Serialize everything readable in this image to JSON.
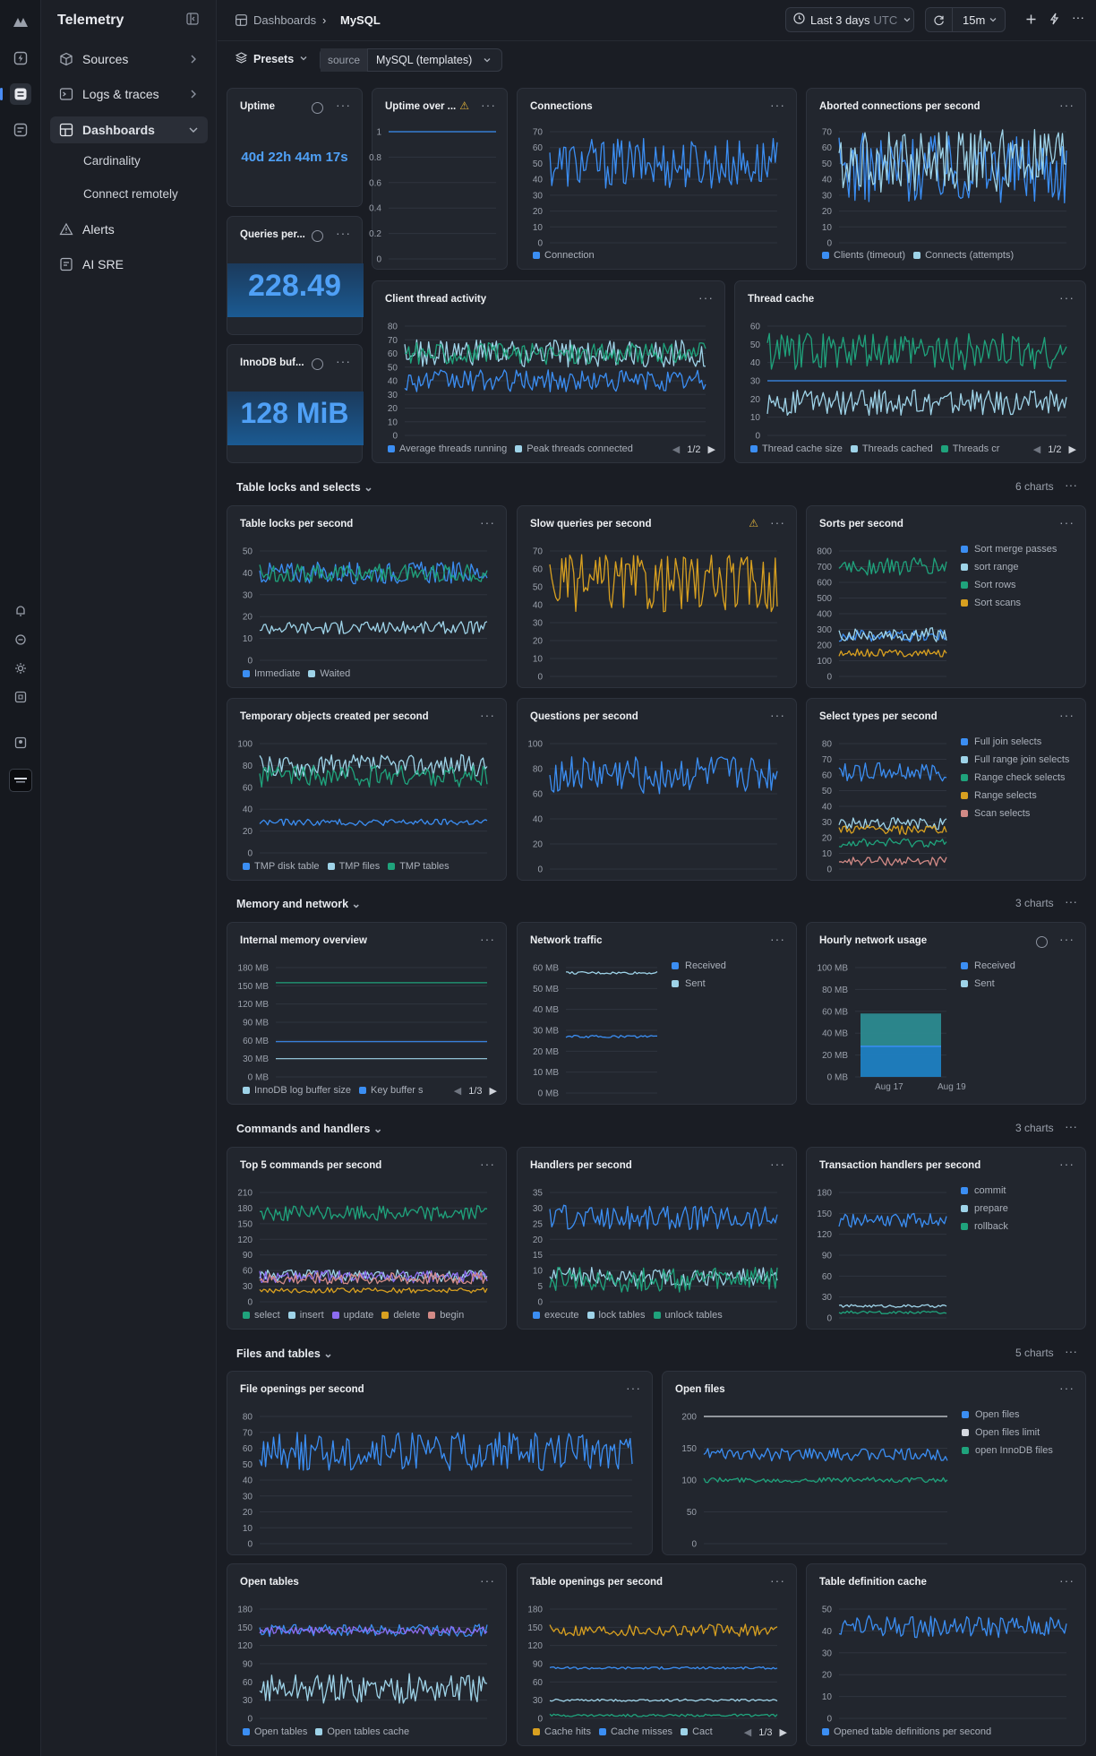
{
  "app": {
    "name": "Telemetry"
  },
  "nav": {
    "items": [
      {
        "key": "sources",
        "label": "Sources"
      },
      {
        "key": "logs",
        "label": "Logs & traces"
      },
      {
        "key": "dashboards",
        "label": "Dashboards"
      },
      {
        "key": "alerts",
        "label": "Alerts"
      },
      {
        "key": "aisre",
        "label": "AI SRE"
      }
    ],
    "sub": [
      "Cardinality",
      "Connect remotely"
    ]
  },
  "breadcrumb": {
    "root": "Dashboards",
    "current": "MySQL"
  },
  "toolbar": {
    "range": "Last 3 days",
    "tz": "UTC",
    "interval": "15m"
  },
  "presets": {
    "label": "Presets",
    "source_label": "source",
    "source_value": "MySQL (templates)"
  },
  "stats": {
    "uptime": {
      "title": "Uptime",
      "value": "40d 22h 44m 17s"
    },
    "queries": {
      "title": "Queries per...",
      "value": "228.49"
    },
    "innodb": {
      "title": "InnoDB buf...",
      "value": "128 MiB"
    }
  },
  "sections": [
    {
      "key": "locks",
      "title": "Table locks and selects",
      "count": "6 charts"
    },
    {
      "key": "memory",
      "title": "Memory and network",
      "count": "3 charts"
    },
    {
      "key": "commands",
      "title": "Commands and handlers",
      "count": "3 charts"
    },
    {
      "key": "files",
      "title": "Files and tables",
      "count": "5 charts"
    }
  ],
  "colors": {
    "blue": "#3b8ef3",
    "teal": "#1fa37c",
    "lightblue": "#9ed3e8",
    "yellow": "#d8a020",
    "pink": "#d28a86",
    "purple": "#8c6cf0"
  },
  "chart_data": [
    {
      "id": "uptime_over",
      "title": "Uptime over ...",
      "type": "line",
      "yticks": [
        "1",
        "0.8",
        "0.6",
        "0.4",
        "0.2",
        "0"
      ],
      "ylim": [
        0,
        1
      ],
      "series": [
        {
          "color": "#3b8ef3",
          "pattern": "flat",
          "base": 1,
          "amp": 0
        }
      ],
      "legend": []
    },
    {
      "id": "connections",
      "title": "Connections",
      "type": "line",
      "yticks": [
        "70",
        "60",
        "50",
        "40",
        "30",
        "20",
        "10",
        "0"
      ],
      "ylim": [
        0,
        70
      ],
      "series": [
        {
          "name": "Connection",
          "color": "#3b8ef3",
          "pattern": "noise",
          "base": 50,
          "amp": 16
        }
      ],
      "legend": [
        "Connection"
      ]
    },
    {
      "id": "aborted",
      "title": "Aborted connections per second",
      "type": "line",
      "yticks": [
        "70",
        "60",
        "50",
        "40",
        "30",
        "20",
        "10",
        "0"
      ],
      "ylim": [
        0,
        70
      ],
      "series": [
        {
          "name": "Clients (timeout)",
          "color": "#3b8ef3",
          "pattern": "noise",
          "base": 47,
          "amp": 22
        },
        {
          "name": "Connects (attempts)",
          "color": "#9ed3e8",
          "pattern": "noise",
          "base": 52,
          "amp": 20
        }
      ],
      "legend": [
        "Clients (timeout)",
        "Connects (attempts)"
      ]
    },
    {
      "id": "client_thread",
      "title": "Client thread activity",
      "type": "line",
      "yticks": [
        "80",
        "70",
        "60",
        "50",
        "40",
        "30",
        "20",
        "10",
        "0"
      ],
      "ylim": [
        0,
        80
      ],
      "series": [
        {
          "name": "Average threads running",
          "color": "#3b8ef3",
          "pattern": "noise",
          "base": 40,
          "amp": 8
        },
        {
          "name": "Peak threads connected",
          "color": "#9ed3e8",
          "pattern": "noise",
          "base": 60,
          "amp": 10
        },
        {
          "name": "",
          "color": "#1fa37c",
          "pattern": "noise",
          "base": 60,
          "amp": 8
        }
      ],
      "legend": [
        "Average threads running",
        "Peak threads connected"
      ],
      "page": "1/2"
    },
    {
      "id": "thread_cache",
      "title": "Thread cache",
      "type": "line",
      "yticks": [
        "60",
        "50",
        "40",
        "30",
        "20",
        "10",
        "0"
      ],
      "ylim": [
        0,
        60
      ],
      "series": [
        {
          "name": "Thread cache size",
          "color": "#3b8ef3",
          "pattern": "flat",
          "base": 30,
          "amp": 0
        },
        {
          "name": "Threads cached",
          "color": "#9ed3e8",
          "pattern": "noise",
          "base": 18,
          "amp": 7
        },
        {
          "name": "Threads cr",
          "color": "#1fa37c",
          "pattern": "noise",
          "base": 46,
          "amp": 10
        }
      ],
      "legend": [
        "Thread cache size",
        "Threads cached",
        "Threads cr"
      ],
      "page": "1/2"
    },
    {
      "id": "table_locks",
      "title": "Table locks per second",
      "type": "line",
      "yticks": [
        "50",
        "40",
        "30",
        "20",
        "10",
        "0"
      ],
      "ylim": [
        0,
        50
      ],
      "series": [
        {
          "name": "Immediate",
          "color": "#3b8ef3",
          "pattern": "noise",
          "base": 40,
          "amp": 5
        },
        {
          "name": "Waited",
          "color": "#9ed3e8",
          "pattern": "noise",
          "base": 15,
          "amp": 3
        },
        {
          "name": "",
          "color": "#1fa37c",
          "pattern": "noise",
          "base": 40,
          "amp": 4
        }
      ],
      "legend": [
        "Immediate",
        "Waited"
      ]
    },
    {
      "id": "slow_queries",
      "title": "Slow queries per second",
      "type": "line",
      "yticks": [
        "70",
        "60",
        "50",
        "40",
        "30",
        "20",
        "10",
        "0"
      ],
      "ylim": [
        0,
        70
      ],
      "series": [
        {
          "color": "#d8a020",
          "pattern": "noise",
          "base": 52,
          "amp": 16
        }
      ],
      "legend": []
    },
    {
      "id": "sorts",
      "title": "Sorts per second",
      "type": "line",
      "yticks": [
        "800",
        "700",
        "600",
        "500",
        "400",
        "300",
        "200",
        "100",
        "0"
      ],
      "ylim": [
        0,
        800
      ],
      "series": [
        {
          "name": "Sort merge passes",
          "color": "#3b8ef3",
          "pattern": "noise",
          "base": 260,
          "amp": 40
        },
        {
          "name": "sort range",
          "color": "#9ed3e8",
          "pattern": "noise",
          "base": 270,
          "amp": 50
        },
        {
          "name": "Sort rows",
          "color": "#1fa37c",
          "pattern": "noise",
          "base": 700,
          "amp": 60
        },
        {
          "name": "Sort scans",
          "color": "#d8a020",
          "pattern": "noise",
          "base": 150,
          "amp": 25
        }
      ],
      "legend": [
        "Sort merge passes",
        "sort range",
        "Sort rows",
        "Sort scans"
      ]
    },
    {
      "id": "tmp_objects",
      "title": "Temporary objects created per second",
      "type": "line",
      "yticks": [
        "100",
        "80",
        "60",
        "40",
        "20",
        "0"
      ],
      "ylim": [
        0,
        100
      ],
      "series": [
        {
          "name": "TMP disk table",
          "color": "#3b8ef3",
          "pattern": "noise",
          "base": 28,
          "amp": 3
        },
        {
          "name": "TMP files",
          "color": "#9ed3e8",
          "pattern": "noise",
          "base": 80,
          "amp": 10
        },
        {
          "name": "TMP tables",
          "color": "#1fa37c",
          "pattern": "noise",
          "base": 70,
          "amp": 10
        }
      ],
      "legend": [
        "TMP disk table",
        "TMP files",
        "TMP tables"
      ]
    },
    {
      "id": "questions",
      "title": "Questions per second",
      "type": "line",
      "yticks": [
        "100",
        "80",
        "60",
        "40",
        "20",
        "0"
      ],
      "ylim": [
        0,
        100
      ],
      "series": [
        {
          "color": "#3b8ef3",
          "pattern": "noise",
          "base": 75,
          "amp": 15
        }
      ],
      "legend": []
    },
    {
      "id": "select_types",
      "title": "Select types per second",
      "type": "line",
      "yticks": [
        "80",
        "70",
        "60",
        "50",
        "40",
        "30",
        "20",
        "10",
        "0"
      ],
      "ylim": [
        0,
        80
      ],
      "series": [
        {
          "name": "Full join selects",
          "color": "#3b8ef3",
          "pattern": "noise",
          "base": 62,
          "amp": 6
        },
        {
          "name": "Full range join selects",
          "color": "#9ed3e8",
          "pattern": "noise",
          "base": 29,
          "amp": 4
        },
        {
          "name": "Range check selects",
          "color": "#1fa37c",
          "pattern": "noise",
          "base": 17,
          "amp": 3
        },
        {
          "name": "Range selects",
          "color": "#d8a020",
          "pattern": "noise",
          "base": 25,
          "amp": 3
        },
        {
          "name": "Scan selects",
          "color": "#d28a86",
          "pattern": "noise",
          "base": 5,
          "amp": 3
        }
      ],
      "legend": [
        "Full join selects",
        "Full range join selects",
        "Range check selects",
        "Range selects",
        "Scan selects"
      ]
    },
    {
      "id": "internal_memory",
      "title": "Internal memory overview",
      "type": "line",
      "yticks": [
        "180 MB",
        "150 MB",
        "120 MB",
        "90 MB",
        "60 MB",
        "30 MB",
        "0 MB"
      ],
      "ylim": [
        0,
        180
      ],
      "series": [
        {
          "name": "InnoDB log buffer size",
          "color": "#9ed3e8",
          "pattern": "flat",
          "base": 30,
          "amp": 0
        },
        {
          "name": "Key buffer",
          "color": "#3b8ef3",
          "pattern": "flat",
          "base": 58,
          "amp": 0
        },
        {
          "name": "",
          "color": "#1fa37c",
          "pattern": "flat",
          "base": 155,
          "amp": 0
        }
      ],
      "legend": [
        "InnoDB log buffer size",
        "Key buffer s"
      ],
      "page": "1/3"
    },
    {
      "id": "network_traffic",
      "title": "Network traffic",
      "type": "line",
      "yticks": [
        "60 MB",
        "50 MB",
        "40 MB",
        "30 MB",
        "20 MB",
        "10 MB",
        "0 MB"
      ],
      "ylim": [
        0,
        60
      ],
      "series": [
        {
          "name": "Received",
          "color": "#3b8ef3",
          "pattern": "noise",
          "base": 27,
          "amp": 0.6
        },
        {
          "name": "Sent",
          "color": "#9ed3e8",
          "pattern": "noise",
          "base": 57.5,
          "amp": 0.6
        }
      ],
      "legend": [
        "Received",
        "Sent"
      ]
    },
    {
      "id": "hourly_network",
      "title": "Hourly network usage",
      "type": "bar",
      "yticks": [
        "100 MB",
        "80 MB",
        "60 MB",
        "40 MB",
        "20 MB",
        "0 MB"
      ],
      "ylim": [
        0,
        100
      ],
      "x": [
        "Aug 17",
        "Aug 19"
      ],
      "series": [
        {
          "name": "Received",
          "color": "#3b8ef3",
          "value": 28
        },
        {
          "name": "Sent",
          "color": "#9ed3e8",
          "value": 58
        }
      ],
      "legend": [
        "Received",
        "Sent"
      ]
    },
    {
      "id": "top_commands",
      "title": "Top 5 commands per second",
      "type": "line",
      "yticks": [
        "210",
        "180",
        "150",
        "120",
        "90",
        "60",
        "30",
        "0"
      ],
      "ylim": [
        0,
        210
      ],
      "series": [
        {
          "name": "select",
          "color": "#1fa37c",
          "pattern": "noise",
          "base": 170,
          "amp": 15
        },
        {
          "name": "insert",
          "color": "#9ed3e8",
          "pattern": "noise",
          "base": 50,
          "amp": 12
        },
        {
          "name": "update",
          "color": "#8c6cf0",
          "pattern": "noise",
          "base": 48,
          "amp": 12
        },
        {
          "name": "delete",
          "color": "#d8a020",
          "pattern": "noise",
          "base": 22,
          "amp": 5
        },
        {
          "name": "begin",
          "color": "#d28a86",
          "pattern": "noise",
          "base": 45,
          "amp": 12
        }
      ],
      "legend": [
        "select",
        "insert",
        "update",
        "delete",
        "begin"
      ]
    },
    {
      "id": "handlers",
      "title": "Handlers per second",
      "type": "line",
      "yticks": [
        "35",
        "30",
        "25",
        "20",
        "15",
        "10",
        "5",
        "0"
      ],
      "ylim": [
        0,
        35
      ],
      "series": [
        {
          "name": "execute",
          "color": "#3b8ef3",
          "pattern": "noise",
          "base": 27,
          "amp": 4
        },
        {
          "name": "lock tables",
          "color": "#9ed3e8",
          "pattern": "noise",
          "base": 8,
          "amp": 3
        },
        {
          "name": "unlock tables",
          "color": "#1fa37c",
          "pattern": "noise",
          "base": 7,
          "amp": 4
        }
      ],
      "legend": [
        "execute",
        "lock tables",
        "unlock tables"
      ]
    },
    {
      "id": "txn_handlers",
      "title": "Transaction handlers per second",
      "type": "line",
      "yticks": [
        "180",
        "150",
        "120",
        "90",
        "60",
        "30",
        "0"
      ],
      "ylim": [
        0,
        180
      ],
      "series": [
        {
          "name": "commit",
          "color": "#3b8ef3",
          "pattern": "noise",
          "base": 140,
          "amp": 10
        },
        {
          "name": "prepare",
          "color": "#9ed3e8",
          "pattern": "noise",
          "base": 17,
          "amp": 2
        },
        {
          "name": "rollback",
          "color": "#1fa37c",
          "pattern": "noise",
          "base": 8,
          "amp": 2
        }
      ],
      "legend": [
        "commit",
        "prepare",
        "rollback"
      ]
    },
    {
      "id": "file_openings",
      "title": "File openings per second",
      "type": "line",
      "yticks": [
        "80",
        "70",
        "60",
        "50",
        "40",
        "30",
        "20",
        "10",
        "0"
      ],
      "ylim": [
        0,
        80
      ],
      "series": [
        {
          "color": "#3b8ef3",
          "pattern": "noise",
          "base": 58,
          "amp": 12
        }
      ],
      "legend": []
    },
    {
      "id": "open_files",
      "title": "Open files",
      "type": "line",
      "yticks": [
        "200",
        "150",
        "100",
        "50",
        "0"
      ],
      "ylim": [
        0,
        200
      ],
      "series": [
        {
          "name": "Open files",
          "color": "#3b8ef3",
          "pattern": "noise",
          "base": 140,
          "amp": 10
        },
        {
          "name": "Open files limit",
          "color": "#d6d9e0",
          "pattern": "flat",
          "base": 200,
          "amp": 0
        },
        {
          "name": "open InnoDB files",
          "color": "#1fa37c",
          "pattern": "noise",
          "base": 100,
          "amp": 4
        }
      ],
      "legend": [
        "Open files",
        "Open files limit",
        "open InnoDB files"
      ]
    },
    {
      "id": "open_tables",
      "title": "Open tables",
      "type": "line",
      "yticks": [
        "180",
        "150",
        "120",
        "90",
        "60",
        "30",
        "0"
      ],
      "ylim": [
        0,
        180
      ],
      "series": [
        {
          "name": "Open tables",
          "color": "#3b8ef3",
          "pattern": "noise",
          "base": 145,
          "amp": 10
        },
        {
          "name": "Open tables cache",
          "color": "#9ed3e8",
          "pattern": "noise",
          "base": 50,
          "amp": 25
        },
        {
          "name": "",
          "color": "#8c6cf0",
          "pattern": "noise",
          "base": 145,
          "amp": 6
        }
      ],
      "legend": [
        "Open tables",
        "Open tables cache"
      ]
    },
    {
      "id": "table_openings",
      "title": "Table openings per second",
      "type": "line",
      "yticks": [
        "180",
        "150",
        "120",
        "90",
        "60",
        "30",
        "0"
      ],
      "ylim": [
        0,
        180
      ],
      "series": [
        {
          "name": "Cache hits",
          "color": "#d8a020",
          "pattern": "noise",
          "base": 145,
          "amp": 10
        },
        {
          "name": "Cache misses",
          "color": "#3b8ef3",
          "pattern": "noise",
          "base": 83,
          "amp": 2
        },
        {
          "name": "Cact",
          "color": "#9ed3e8",
          "pattern": "noise",
          "base": 30,
          "amp": 2
        },
        {
          "name": "",
          "color": "#1fa37c",
          "pattern": "noise",
          "base": 5,
          "amp": 2
        }
      ],
      "legend": [
        "Cache hits",
        "Cache misses",
        "Cact"
      ],
      "page": "1/3"
    },
    {
      "id": "table_def_cache",
      "title": "Table definition cache",
      "type": "line",
      "yticks": [
        "50",
        "40",
        "30",
        "20",
        "10",
        "0"
      ],
      "ylim": [
        0,
        50
      ],
      "series": [
        {
          "name": "Opened table definitions per second",
          "color": "#3b8ef3",
          "pattern": "noise",
          "base": 42,
          "amp": 5
        }
      ],
      "legend": [
        "Opened table definitions per second"
      ]
    }
  ]
}
